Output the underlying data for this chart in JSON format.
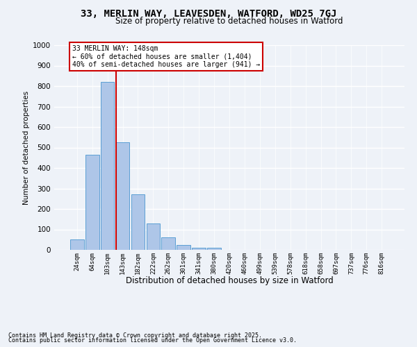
{
  "title_line1": "33, MERLIN WAY, LEAVESDEN, WATFORD, WD25 7GJ",
  "title_line2": "Size of property relative to detached houses in Watford",
  "xlabel": "Distribution of detached houses by size in Watford",
  "ylabel": "Number of detached properties",
  "categories": [
    "24sqm",
    "64sqm",
    "103sqm",
    "143sqm",
    "182sqm",
    "222sqm",
    "262sqm",
    "301sqm",
    "341sqm",
    "380sqm",
    "420sqm",
    "460sqm",
    "499sqm",
    "539sqm",
    "578sqm",
    "618sqm",
    "658sqm",
    "697sqm",
    "737sqm",
    "776sqm",
    "816sqm"
  ],
  "values": [
    50,
    465,
    820,
    525,
    270,
    130,
    60,
    23,
    10,
    10,
    0,
    0,
    0,
    0,
    0,
    0,
    0,
    0,
    0,
    0,
    0
  ],
  "bar_color": "#aec6e8",
  "bar_edge_color": "#5a9fd4",
  "property_line_index": 3,
  "property_line_color": "#cc0000",
  "annotation_text": "33 MERLIN WAY: 148sqm\n← 60% of detached houses are smaller (1,404)\n40% of semi-detached houses are larger (941) →",
  "annotation_box_color": "#cc0000",
  "ylim": [
    0,
    1000
  ],
  "yticks": [
    0,
    100,
    200,
    300,
    400,
    500,
    600,
    700,
    800,
    900,
    1000
  ],
  "background_color": "#eef2f8",
  "grid_color": "#ffffff",
  "footer_line1": "Contains HM Land Registry data © Crown copyright and database right 2025.",
  "footer_line2": "Contains public sector information licensed under the Open Government Licence v3.0."
}
